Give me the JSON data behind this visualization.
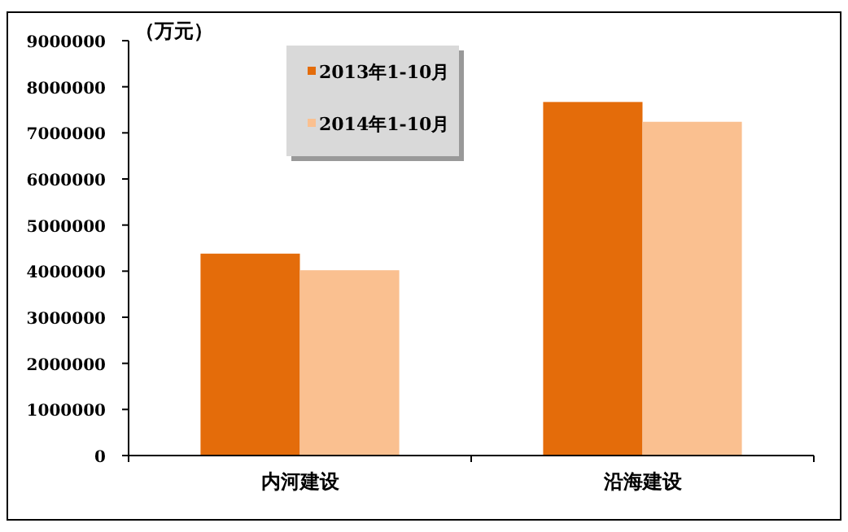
{
  "chart_data": {
    "type": "bar",
    "ylabel": "（万元）",
    "categories": [
      "内河建设",
      "沿海建设"
    ],
    "series": [
      {
        "name": "2013年1-10月",
        "color": "#e46c0a",
        "values": [
          4380000,
          7670000
        ]
      },
      {
        "name": "2014年1-10月",
        "color": "#fac090",
        "values": [
          4020000,
          7240000
        ]
      }
    ],
    "ylim": [
      0,
      9000000
    ],
    "yticks": [
      0,
      1000000,
      2000000,
      3000000,
      4000000,
      5000000,
      6000000,
      7000000,
      8000000,
      9000000
    ],
    "grid": false,
    "legend": "top left"
  }
}
